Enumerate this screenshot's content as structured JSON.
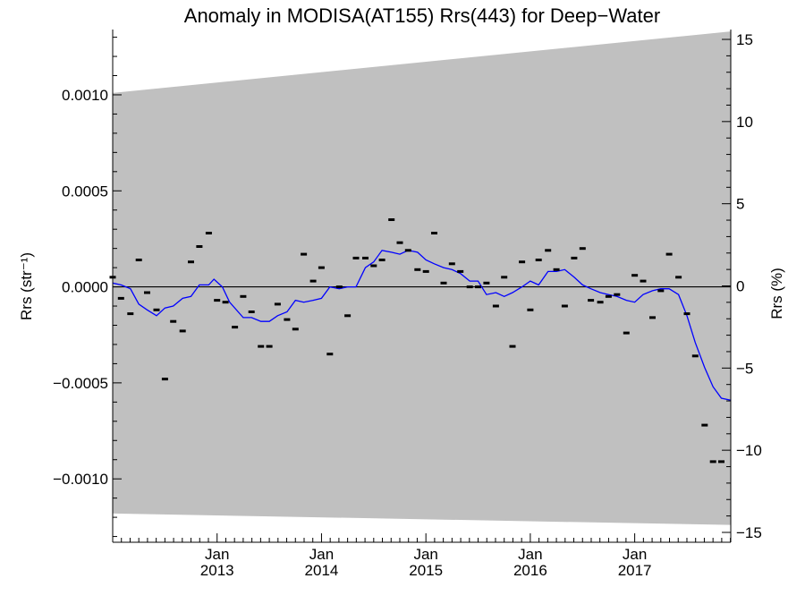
{
  "chart_data": {
    "type": "scatter",
    "title": "Anomaly in MODISA(AT155) Rrs(443) for Deep−Water",
    "xlabel": "",
    "ylabel": "Rrs (str⁻¹)",
    "y2label": "Rrs (%)",
    "xlim": [
      2012.0,
      2017.92
    ],
    "ylim": [
      -0.00133,
      0.00134
    ],
    "y2lim": [
      -15.6,
      15.6
    ],
    "yticks": [
      {
        "value": 0.001,
        "label": "0.0010"
      },
      {
        "value": 0.0005,
        "label": "0.0005"
      },
      {
        "value": 0.0,
        "label": "0.0000"
      },
      {
        "value": -0.0005,
        "label": "−0.0005"
      },
      {
        "value": -0.001,
        "label": "−0.0010"
      }
    ],
    "y2ticks": [
      {
        "value": 15,
        "label": "15"
      },
      {
        "value": 10,
        "label": "10"
      },
      {
        "value": 5,
        "label": "5"
      },
      {
        "value": 0,
        "label": "0"
      },
      {
        "value": -5,
        "label": "−5"
      },
      {
        "value": -10,
        "label": "−10"
      },
      {
        "value": -15,
        "label": "−15"
      }
    ],
    "xticks": [
      {
        "value": 2013.0,
        "month": "Jan",
        "year": "2013"
      },
      {
        "value": 2014.0,
        "month": "Jan",
        "year": "2014"
      },
      {
        "value": 2015.0,
        "month": "Jan",
        "year": "2015"
      },
      {
        "value": 2016.0,
        "month": "Jan",
        "year": "2016"
      },
      {
        "value": 2017.0,
        "month": "Jan",
        "year": "2017"
      }
    ],
    "uncertainty_band": {
      "color": "#c0c0c0",
      "upper": [
        [
          2012.0,
          0.00101
        ],
        [
          2017.92,
          0.00133
        ]
      ],
      "lower": [
        [
          2012.0,
          -0.00118
        ],
        [
          2017.92,
          -0.00124
        ]
      ]
    },
    "zero_line": 0,
    "series": [
      {
        "kind": "markers",
        "color": "#000000",
        "points": [
          [
            2012.0,
            5e-05
          ],
          [
            2012.08,
            -6e-05
          ],
          [
            2012.17,
            -0.00014
          ],
          [
            2012.25,
            0.00014
          ],
          [
            2012.33,
            -3e-05
          ],
          [
            2012.42,
            -0.00012
          ],
          [
            2012.5,
            -0.00048
          ],
          [
            2012.58,
            -0.00018
          ],
          [
            2012.67,
            -0.00023
          ],
          [
            2012.75,
            0.00013
          ],
          [
            2012.83,
            0.00021
          ],
          [
            2012.92,
            0.00028
          ],
          [
            2013.0,
            -7e-05
          ],
          [
            2013.08,
            -8e-05
          ],
          [
            2013.17,
            -0.00021
          ],
          [
            2013.25,
            -5e-05
          ],
          [
            2013.33,
            -0.00013
          ],
          [
            2013.42,
            -0.00031
          ],
          [
            2013.5,
            -0.00031
          ],
          [
            2013.58,
            -9e-05
          ],
          [
            2013.67,
            -0.00017
          ],
          [
            2013.75,
            -0.00022
          ],
          [
            2013.83,
            0.00017
          ],
          [
            2013.92,
            3e-05
          ],
          [
            2014.0,
            0.0001
          ],
          [
            2014.08,
            -0.00035
          ],
          [
            2014.17,
            0.0
          ],
          [
            2014.25,
            -0.00015
          ],
          [
            2014.33,
            0.00015
          ],
          [
            2014.42,
            0.00015
          ],
          [
            2014.5,
            0.00011
          ],
          [
            2014.58,
            0.00014
          ],
          [
            2014.67,
            0.00035
          ],
          [
            2014.75,
            0.00023
          ],
          [
            2014.83,
            0.00019
          ],
          [
            2014.92,
            9e-05
          ],
          [
            2015.0,
            8e-05
          ],
          [
            2015.08,
            0.00028
          ],
          [
            2015.17,
            2e-05
          ],
          [
            2015.25,
            0.00012
          ],
          [
            2015.33,
            8e-05
          ],
          [
            2015.42,
            0.0
          ],
          [
            2015.5,
            0.0
          ],
          [
            2015.58,
            2e-05
          ],
          [
            2015.67,
            -0.0001
          ],
          [
            2015.75,
            5e-05
          ],
          [
            2015.83,
            -0.00031
          ],
          [
            2015.92,
            0.00013
          ],
          [
            2016.0,
            -0.00012
          ],
          [
            2016.08,
            0.00014
          ],
          [
            2016.17,
            0.00019
          ],
          [
            2016.25,
            9e-05
          ],
          [
            2016.33,
            -0.0001
          ],
          [
            2016.42,
            0.00015
          ],
          [
            2016.5,
            0.0002
          ],
          [
            2016.58,
            -7e-05
          ],
          [
            2016.67,
            -8e-05
          ],
          [
            2016.75,
            -5e-05
          ],
          [
            2016.83,
            -4e-05
          ],
          [
            2016.92,
            -0.00024
          ],
          [
            2017.0,
            6e-05
          ],
          [
            2017.08,
            3e-05
          ],
          [
            2017.17,
            -0.00016
          ],
          [
            2017.25,
            -2e-05
          ],
          [
            2017.33,
            0.00017
          ],
          [
            2017.42,
            5e-05
          ],
          [
            2017.5,
            -0.00014
          ],
          [
            2017.58,
            -0.00036
          ],
          [
            2017.67,
            -0.00072
          ],
          [
            2017.75,
            -0.00091
          ],
          [
            2017.83,
            -0.00091
          ]
        ]
      },
      {
        "kind": "line",
        "color": "#0000ff",
        "points": [
          [
            2012.0,
            2e-05
          ],
          [
            2012.08,
            1e-05
          ],
          [
            2012.17,
            -1e-05
          ],
          [
            2012.25,
            -9e-05
          ],
          [
            2012.33,
            -0.00012
          ],
          [
            2012.42,
            -0.00015
          ],
          [
            2012.5,
            -0.00011
          ],
          [
            2012.58,
            -0.0001
          ],
          [
            2012.67,
            -6e-05
          ],
          [
            2012.75,
            -5e-05
          ],
          [
            2012.83,
            1e-05
          ],
          [
            2012.92,
            1e-05
          ],
          [
            2012.97,
            4e-05
          ],
          [
            2013.05,
            0.0
          ],
          [
            2013.12,
            -8e-05
          ],
          [
            2013.25,
            -0.00016
          ],
          [
            2013.33,
            -0.00016
          ],
          [
            2013.42,
            -0.00018
          ],
          [
            2013.5,
            -0.00018
          ],
          [
            2013.58,
            -0.00015
          ],
          [
            2013.67,
            -0.00013
          ],
          [
            2013.75,
            -7e-05
          ],
          [
            2013.83,
            -8e-05
          ],
          [
            2013.92,
            -7e-05
          ],
          [
            2014.0,
            -6e-05
          ],
          [
            2014.08,
            0.0
          ],
          [
            2014.17,
            -1e-05
          ],
          [
            2014.25,
            0.0
          ],
          [
            2014.33,
            0.0
          ],
          [
            2014.42,
            0.0001
          ],
          [
            2014.5,
            0.00013
          ],
          [
            2014.58,
            0.00019
          ],
          [
            2014.67,
            0.00018
          ],
          [
            2014.75,
            0.00017
          ],
          [
            2014.83,
            0.00019
          ],
          [
            2014.92,
            0.00018
          ],
          [
            2015.0,
            0.00014
          ],
          [
            2015.08,
            0.00012
          ],
          [
            2015.17,
            0.0001
          ],
          [
            2015.25,
            9e-05
          ],
          [
            2015.33,
            7e-05
          ],
          [
            2015.42,
            3e-05
          ],
          [
            2015.5,
            3e-05
          ],
          [
            2015.58,
            -4e-05
          ],
          [
            2015.67,
            -3e-05
          ],
          [
            2015.75,
            -5e-05
          ],
          [
            2015.83,
            -3e-05
          ],
          [
            2015.92,
            0.0
          ],
          [
            2016.0,
            3e-05
          ],
          [
            2016.08,
            1e-05
          ],
          [
            2016.17,
            8e-05
          ],
          [
            2016.25,
            8e-05
          ],
          [
            2016.33,
            9e-05
          ],
          [
            2016.42,
            5e-05
          ],
          [
            2016.5,
            1e-05
          ],
          [
            2016.58,
            -1e-05
          ],
          [
            2016.67,
            -3e-05
          ],
          [
            2016.75,
            -4e-05
          ],
          [
            2016.83,
            -5e-05
          ],
          [
            2016.92,
            -7e-05
          ],
          [
            2017.0,
            -8e-05
          ],
          [
            2017.08,
            -4e-05
          ],
          [
            2017.17,
            -2e-05
          ],
          [
            2017.25,
            -1e-05
          ],
          [
            2017.33,
            -1e-05
          ],
          [
            2017.42,
            -4e-05
          ],
          [
            2017.5,
            -0.00015
          ],
          [
            2017.58,
            -0.00029
          ],
          [
            2017.67,
            -0.00042
          ],
          [
            2017.75,
            -0.00052
          ],
          [
            2017.83,
            -0.00058
          ],
          [
            2017.92,
            -0.00059
          ]
        ]
      }
    ]
  }
}
